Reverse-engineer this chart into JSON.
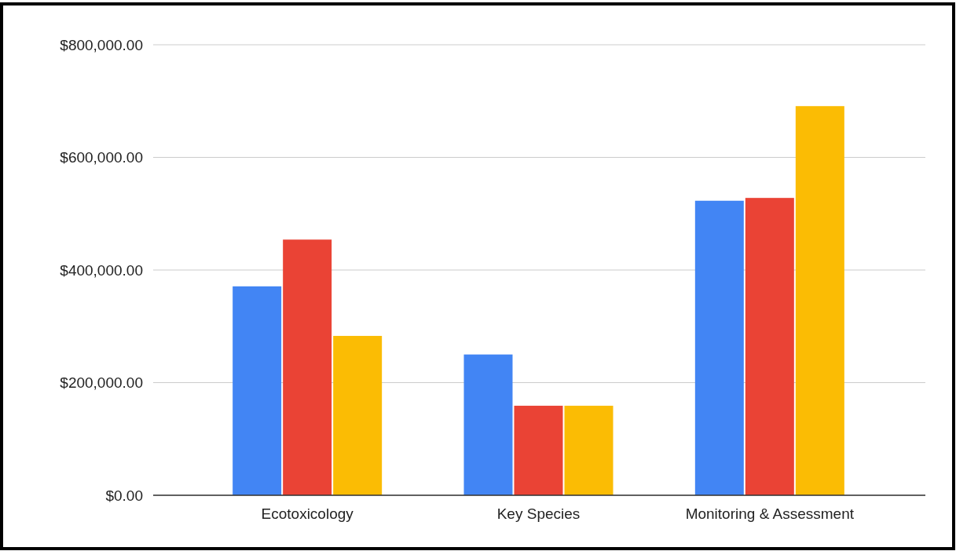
{
  "chart_data": {
    "type": "bar",
    "categories": [
      "Ecotoxicology",
      "Key Species",
      "Monitoring & Assessment"
    ],
    "series": [
      {
        "color": "#4285f4",
        "values": [
          371000,
          250000,
          523000
        ]
      },
      {
        "color": "#ea4335",
        "values": [
          454000,
          159000,
          528000
        ]
      },
      {
        "color": "#fbbc04",
        "values": [
          283000,
          159000,
          691000
        ]
      }
    ],
    "ylim": [
      0,
      800000
    ],
    "yticks": [
      {
        "value": 0,
        "label": "$0.00"
      },
      {
        "value": 200000,
        "label": "$200,000.00"
      },
      {
        "value": 400000,
        "label": "$400,000.00"
      },
      {
        "value": 600000,
        "label": "$600,000.00"
      },
      {
        "value": 800000,
        "label": "$800,000.00"
      }
    ],
    "grid": "y"
  }
}
